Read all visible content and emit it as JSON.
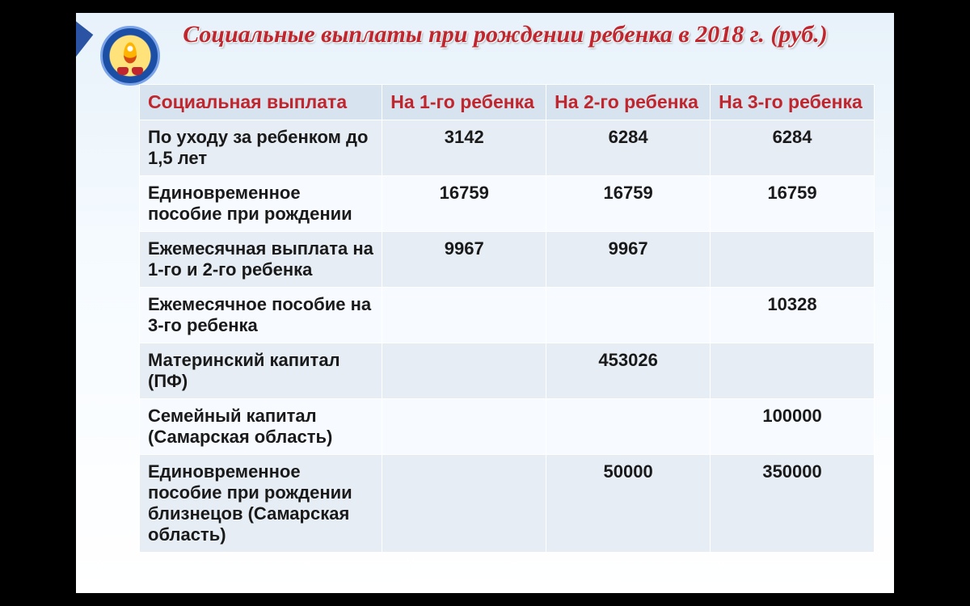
{
  "title": "Социальные выплаты при рождении ребенка в 2018 г. (руб.)",
  "table": {
    "type": "table",
    "header_color": "#c0262d",
    "header_bg": "#d7e3ef",
    "row_bg_odd": "#e6edf4",
    "row_bg_even": "#f7fbff",
    "border_color": "#ffffff",
    "label_fontsize": 22,
    "header_fontsize": 23,
    "columns": [
      "Социальная выплата",
      "На 1-го ребенка",
      "На 2-го ребенка",
      "На 3-го ребенка"
    ],
    "rows": [
      {
        "label": "По уходу за ребенком до 1,5 лет",
        "c1": "3142",
        "c2": "6284",
        "c3": "6284"
      },
      {
        "label": "Единовременное пособие при рождении",
        "c1": "16759",
        "c2": "16759",
        "c3": "16759"
      },
      {
        "label": "Ежемесячная выплата на 1-го и 2-го ребенка",
        "c1": "9967",
        "c2": "9967",
        "c3": ""
      },
      {
        "label": "Ежемесячное пособие на 3-го ребенка",
        "c1": "",
        "c2": "",
        "c3": "10328"
      },
      {
        "label": "Материнский капитал (ПФ)",
        "c1": "",
        "c2": "453026",
        "c3": ""
      },
      {
        "label": "Семейный капитал (Самарская область)",
        "c1": "",
        "c2": "",
        "c3": "100000"
      },
      {
        "label": "Единовременное пособие при рождении близнецов (Самарская область)",
        "c1": "",
        "c2": "50000",
        "c3": "350000"
      }
    ]
  },
  "style": {
    "slide_bg_top": "#e8f2fa",
    "slide_bg_bottom": "#ffffff",
    "title_color": "#c0262d",
    "title_fontsize": 30,
    "ribbon_colors": [
      "#c0262d",
      "#ffffff",
      "#2a54a3"
    ],
    "emblem_outer": "#1b4fa5",
    "emblem_inner": "#ffe27a",
    "stage_bg": "#000000"
  }
}
